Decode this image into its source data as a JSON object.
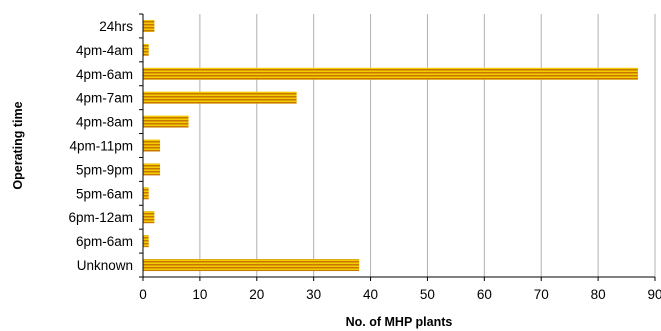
{
  "chart_data": {
    "type": "bar",
    "orientation": "horizontal",
    "title": "",
    "xlabel": "No. of MHP plants",
    "ylabel": "Operating time",
    "categories": [
      "24hrs",
      "4pm-4am",
      "4pm-6am",
      "4pm-7am",
      "4pm-8am",
      "4pm-11pm",
      "5pm-9pm",
      "5pm-6am",
      "6pm-12am",
      "6pm-6am",
      "Unknown"
    ],
    "values": [
      2,
      1,
      87,
      27,
      8,
      3,
      3,
      1,
      2,
      1,
      38
    ],
    "xlim": [
      0,
      90
    ],
    "xticks": [
      "0",
      "10",
      "20",
      "30",
      "40",
      "50",
      "60",
      "70",
      "80",
      "90"
    ],
    "grid": "vertical",
    "legend": "none",
    "colors": {
      "bar_stripe_dark": "#c87800",
      "bar_stripe_light": "#f2cc00",
      "grid": "#b0b0b0",
      "axis": "#000000"
    }
  }
}
